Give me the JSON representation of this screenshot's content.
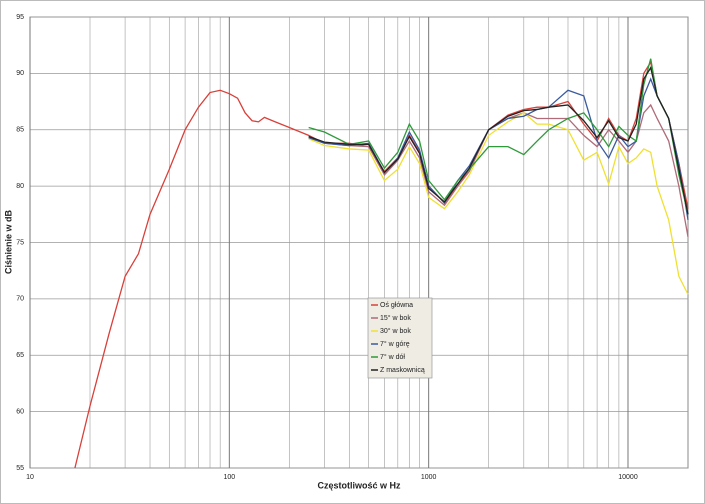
{
  "chart_data": {
    "type": "line",
    "x_scale": "log",
    "minor_grid": true,
    "grid": true,
    "xlabel": "Częstotliwość w Hz",
    "ylabel": "Ciśnienie w dB",
    "xlim": [
      10,
      20000
    ],
    "ylim": [
      55,
      95
    ],
    "xticks": [
      10,
      100,
      1000,
      10000
    ],
    "yticks": [
      55,
      60,
      65,
      70,
      75,
      80,
      85,
      90,
      95
    ],
    "x": [
      16.8,
      20,
      25,
      30,
      35,
      40,
      50,
      60,
      70,
      80,
      90,
      100,
      110,
      120,
      130,
      140,
      150,
      170,
      200,
      250,
      300,
      400,
      500,
      600,
      700,
      800,
      900,
      1000,
      1200,
      1400,
      1600,
      2000,
      2500,
      3000,
      3500,
      4000,
      5000,
      6000,
      7000,
      8000,
      9000,
      10000,
      11000,
      12000,
      13000,
      14000,
      16000,
      18000,
      20000
    ],
    "series": [
      {
        "name": "Oś główna",
        "color": "#d8403a",
        "values": [
          55,
          60.5,
          67,
          72,
          74,
          77.5,
          81.5,
          85,
          87,
          88.3,
          88.5,
          88.2,
          87.8,
          86.5,
          85.8,
          85.7,
          86.1,
          85.7,
          85.2,
          84.5,
          83.8,
          83.8,
          83.5,
          81.3,
          82.5,
          84.5,
          83,
          80,
          78.5,
          80,
          81.5,
          85,
          86.3,
          86.8,
          87,
          87,
          87.5,
          85.5,
          84,
          86,
          84.5,
          84,
          86,
          90,
          91,
          88,
          86,
          82,
          78
        ]
      },
      {
        "name": "15° w bok",
        "color": "#b06a78",
        "values": [
          null,
          null,
          null,
          null,
          null,
          null,
          null,
          null,
          null,
          null,
          null,
          null,
          null,
          null,
          null,
          null,
          null,
          null,
          null,
          84.3,
          83.8,
          83.6,
          83.5,
          81,
          82.3,
          84,
          82.5,
          79.5,
          78.3,
          80,
          81.3,
          85,
          86,
          86.5,
          86,
          86,
          86,
          84.5,
          83.5,
          85,
          84,
          83,
          84,
          86.5,
          87.2,
          86,
          84,
          80,
          75.5
        ]
      },
      {
        "name": "30° w bok",
        "color": "#f0e030",
        "values": [
          null,
          null,
          null,
          null,
          null,
          null,
          null,
          null,
          null,
          null,
          null,
          null,
          null,
          null,
          null,
          null,
          null,
          null,
          null,
          84.2,
          83.6,
          83.3,
          83.2,
          80.5,
          81.5,
          83.5,
          82,
          79,
          78,
          79.5,
          81,
          84.5,
          85.7,
          86.5,
          85.5,
          85.5,
          85,
          82.3,
          83,
          80.2,
          83.5,
          82,
          82.5,
          83.3,
          83,
          80,
          77,
          72,
          70.4
        ]
      },
      {
        "name": "7° w górę",
        "color": "#3a5aa0",
        "values": [
          null,
          null,
          null,
          null,
          null,
          null,
          null,
          null,
          null,
          null,
          null,
          null,
          null,
          null,
          null,
          null,
          null,
          null,
          null,
          84.3,
          83.8,
          83.6,
          83.8,
          81.2,
          82.5,
          84.8,
          83.2,
          80,
          78.5,
          80.5,
          81.8,
          85,
          86,
          86.2,
          86.8,
          87,
          88.5,
          88,
          84,
          82.5,
          84.5,
          83.5,
          84,
          88,
          89.5,
          88,
          86,
          82,
          77
        ]
      },
      {
        "name": "7° w dół",
        "color": "#2e9a3a",
        "values": [
          null,
          null,
          null,
          null,
          null,
          null,
          null,
          null,
          null,
          null,
          null,
          null,
          null,
          null,
          null,
          null,
          null,
          null,
          null,
          85.2,
          84.8,
          83.7,
          84,
          81.6,
          83,
          85.5,
          84,
          80.5,
          78.8,
          80.5,
          81.5,
          83.5,
          83.5,
          82.8,
          84,
          85,
          86,
          86.5,
          85,
          83.5,
          85.3,
          84.5,
          84,
          89,
          91.3,
          88,
          86,
          81,
          77.5
        ]
      },
      {
        "name": "Z maskownicą",
        "color": "#222222",
        "values": [
          null,
          null,
          null,
          null,
          null,
          null,
          null,
          null,
          null,
          null,
          null,
          null,
          null,
          null,
          null,
          null,
          null,
          null,
          null,
          84.4,
          83.9,
          83.7,
          83.7,
          81.2,
          82.4,
          84.4,
          82.9,
          79.8,
          78.6,
          80.2,
          81.6,
          85,
          86.2,
          86.7,
          86.8,
          87,
          87.2,
          85.8,
          84.3,
          85.8,
          84.3,
          84,
          85.5,
          89.5,
          90.5,
          88,
          86,
          81.5,
          77.5
        ]
      }
    ]
  }
}
